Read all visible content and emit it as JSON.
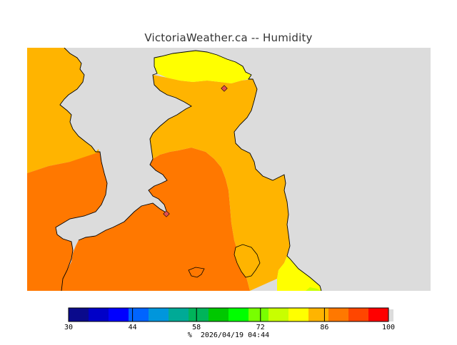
{
  "map": {
    "title": "VictoriaWeather.ca -- Humidity",
    "legend": {
      "unit": "%",
      "timestamp": "2026/04/19 04:44",
      "ticks": [
        "30",
        "44",
        "58",
        "72",
        "86",
        "100"
      ],
      "tick_values": [
        30,
        44,
        58,
        72,
        86,
        100
      ],
      "range": [
        30,
        100
      ],
      "colors": [
        "#0a0a8c",
        "#0000c8",
        "#0000ff",
        "#0064ff",
        "#0096dc",
        "#00aa96",
        "#00b45a",
        "#00c800",
        "#00ff00",
        "#78ff00",
        "#c8ff00",
        "#ffff00",
        "#ffb400",
        "#ff7800",
        "#ff4600",
        "#ff0000"
      ]
    },
    "colors": {
      "land_background": "#dcdcdc",
      "humidity_80": "#ffb400",
      "humidity_85": "#ff7800",
      "humidity_75": "#ffff00",
      "humidity_70": "#c8ff00",
      "station_marker": "#e05050"
    }
  }
}
